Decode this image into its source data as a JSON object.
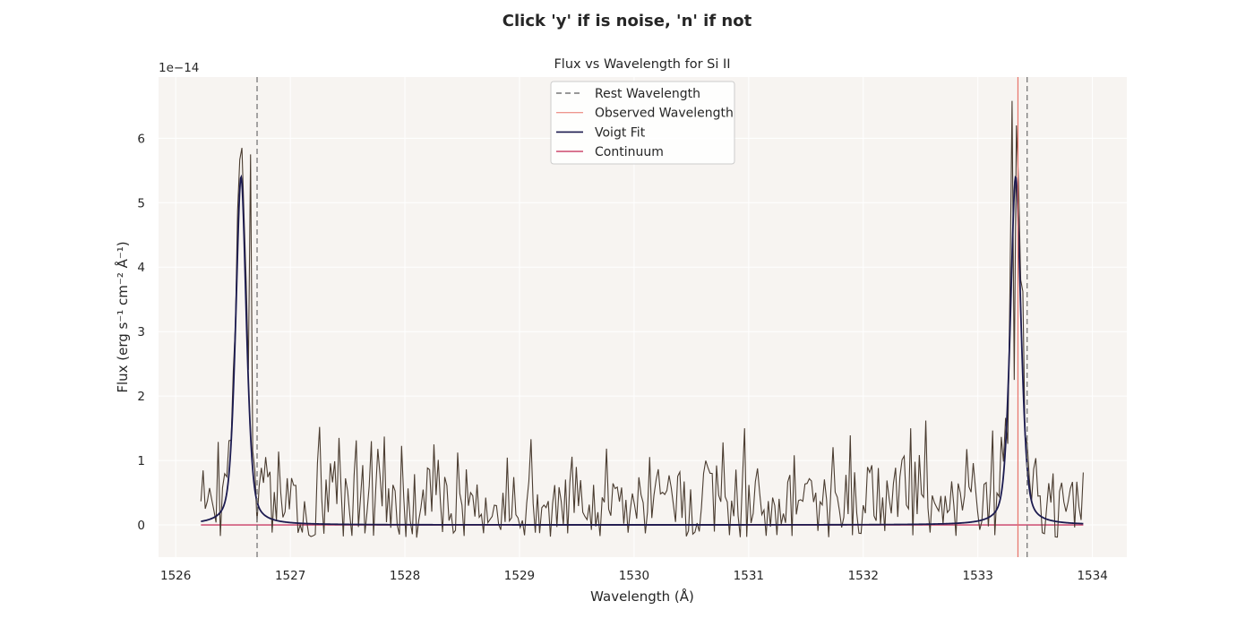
{
  "figure": {
    "suptitle": "Click 'y' if is noise, 'n' if not"
  },
  "chart_data": {
    "type": "line",
    "title": "Flux vs Wavelength for Si II",
    "xlabel": "Wavelength (Å)",
    "ylabel": "Flux (erg s⁻¹ cm⁻² Å⁻¹)",
    "y_offset_text": "1e−14",
    "y_scale_factor": 1e-14,
    "xlim": [
      1525.85,
      1534.3
    ],
    "ylim": [
      -0.5,
      6.95
    ],
    "grid": true,
    "legend_position": "upper center",
    "x_ticks": [
      1526,
      1527,
      1528,
      1529,
      1530,
      1531,
      1532,
      1533,
      1534
    ],
    "y_ticks": [
      0,
      1,
      2,
      3,
      4,
      5,
      6
    ],
    "rest_wavelengths": [
      1526.71,
      1533.43
    ],
    "observed_wavelength": 1533.35,
    "voigt_components": [
      {
        "center": 1526.57,
        "amplitude": 5.4,
        "sigma": 0.05,
        "gamma": 0.05
      },
      {
        "center": 1533.33,
        "amplitude": 5.4,
        "sigma": 0.05,
        "gamma": 0.05
      }
    ],
    "continuum_level": 0.0,
    "flux_range": [
      1526.22,
      1533.92
    ],
    "flux_points": 410,
    "flux_noise_seed": 7,
    "flux_highlights": [
      {
        "x": 1526.58,
        "y": 5.85
      },
      {
        "x": 1526.66,
        "y": 5.75
      },
      {
        "x": 1527.26,
        "y": 1.52
      },
      {
        "x": 1527.42,
        "y": 1.35
      },
      {
        "x": 1527.71,
        "y": 1.3
      },
      {
        "x": 1528.26,
        "y": 1.25
      },
      {
        "x": 1529.1,
        "y": 1.33
      },
      {
        "x": 1530.77,
        "y": 1.28
      },
      {
        "x": 1530.97,
        "y": 1.5
      },
      {
        "x": 1531.4,
        "y": 1.08
      },
      {
        "x": 1532.42,
        "y": 1.5
      },
      {
        "x": 1532.55,
        "y": 1.62
      },
      {
        "x": 1533.3,
        "y": 6.58
      },
      {
        "x": 1533.31,
        "y": 2.25
      }
    ],
    "series": [
      {
        "name": "Rest Wavelength",
        "color": "#777777",
        "style": "dashed"
      },
      {
        "name": "Observed Wavelength",
        "color": "#e8736a",
        "style": "solid"
      },
      {
        "name": "Voigt Fit",
        "color": "#1b1a4f",
        "style": "solid"
      },
      {
        "name": "Continuum",
        "color": "#d1587a",
        "style": "solid"
      }
    ],
    "flux_color": "#4a3c30",
    "plot_background": "#f7f4f1"
  }
}
